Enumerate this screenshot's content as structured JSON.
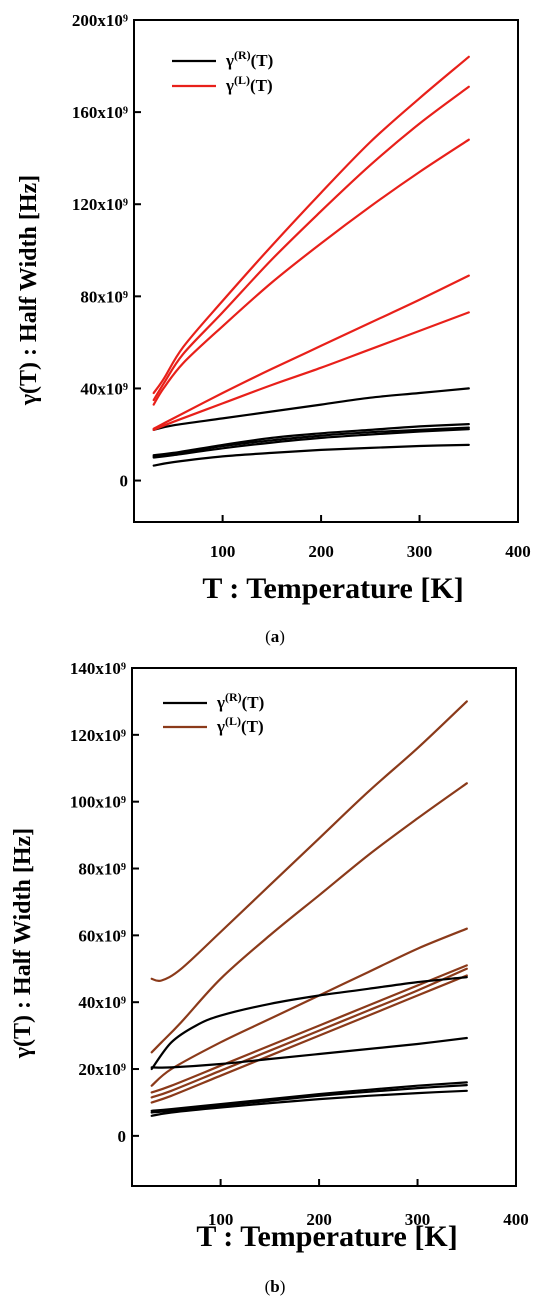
{
  "chart_data": [
    {
      "type": "line",
      "caption": "(a)",
      "xlabel": "T : Temperature [K]",
      "ylabel": "γ(T) :  Half Width [Hz]",
      "xlim": [
        10,
        400
      ],
      "ylim": [
        -18,
        200
      ],
      "xticks": [
        100,
        200,
        300,
        400
      ],
      "yticks": [
        0,
        40,
        80,
        120,
        160,
        200
      ],
      "ytick_labels": [
        "0",
        "40x10⁹",
        "80x10⁹",
        "120x10⁹",
        "160x10⁹",
        "200x10⁹"
      ],
      "legend": {
        "position": "top-left",
        "entries": [
          {
            "label": "γ(R)(T)",
            "base": "γ",
            "sup": "(R)",
            "tail": "(T)",
            "color": "#000000"
          },
          {
            "label": "γ(L)(T)",
            "base": "γ",
            "sup": "(L)",
            "tail": "(T)",
            "color": "#e8201a"
          }
        ]
      },
      "series": [
        {
          "group": "R",
          "color": "#000000",
          "x": [
            30,
            50,
            100,
            150,
            200,
            250,
            300,
            350
          ],
          "values": [
            22,
            24,
            27,
            30,
            33,
            36,
            38,
            40
          ]
        },
        {
          "group": "R",
          "color": "#000000",
          "x": [
            30,
            50,
            100,
            150,
            200,
            250,
            300,
            350
          ],
          "values": [
            11,
            12,
            15.5,
            18.5,
            20.5,
            22,
            23.5,
            24.5
          ]
        },
        {
          "group": "R",
          "color": "#000000",
          "x": [
            30,
            50,
            100,
            150,
            200,
            250,
            300,
            350
          ],
          "values": [
            10.5,
            11.5,
            15,
            17.5,
            19.5,
            21,
            22,
            23
          ]
        },
        {
          "group": "R",
          "color": "#000000",
          "x": [
            30,
            50,
            100,
            150,
            200,
            250,
            300,
            350
          ],
          "values": [
            10,
            11,
            14,
            16.5,
            18.5,
            20,
            21.3,
            22.3
          ]
        },
        {
          "group": "R",
          "color": "#000000",
          "x": [
            30,
            50,
            100,
            150,
            200,
            250,
            300,
            350
          ],
          "values": [
            6.5,
            8,
            10.5,
            12,
            13.3,
            14.2,
            15,
            15.5
          ]
        },
        {
          "group": "L",
          "color": "#e8201a",
          "x": [
            30,
            40,
            60,
            100,
            150,
            200,
            250,
            300,
            350
          ],
          "values": [
            38,
            44,
            58,
            78,
            102,
            125,
            147,
            166,
            184
          ]
        },
        {
          "group": "L",
          "color": "#e8201a",
          "x": [
            30,
            40,
            60,
            100,
            150,
            200,
            250,
            300,
            350
          ],
          "values": [
            35,
            42,
            55,
            73,
            96,
            117,
            137,
            155,
            171
          ]
        },
        {
          "group": "L",
          "color": "#e8201a",
          "x": [
            30,
            40,
            60,
            100,
            150,
            200,
            250,
            300,
            350
          ],
          "values": [
            33,
            40,
            51,
            67,
            86,
            103,
            119,
            134,
            148
          ]
        },
        {
          "group": "L",
          "color": "#e8201a",
          "x": [
            30,
            50,
            100,
            150,
            200,
            250,
            300,
            350
          ],
          "values": [
            22.5,
            27,
            38,
            48.5,
            58.5,
            68.5,
            78.5,
            89
          ]
        },
        {
          "group": "L",
          "color": "#e8201a",
          "x": [
            30,
            50,
            100,
            150,
            200,
            250,
            300,
            350
          ],
          "values": [
            22,
            25.5,
            33.5,
            41.5,
            49,
            57,
            65,
            73
          ]
        }
      ]
    },
    {
      "type": "line",
      "caption": "(b)",
      "xlabel": "T : Temperature [K]",
      "ylabel": "γ(T) :  Half Width [Hz]",
      "xlim": [
        10,
        400
      ],
      "ylim": [
        -15,
        140
      ],
      "xticks": [
        100,
        200,
        300,
        400
      ],
      "yticks": [
        0,
        20,
        40,
        60,
        80,
        100,
        120,
        140
      ],
      "ytick_labels": [
        "0",
        "20x10⁹",
        "40x10⁹",
        "60x10⁹",
        "80x10⁹",
        "100x10⁹",
        "120x10⁹",
        "140x10⁹"
      ],
      "legend": {
        "position": "top-left",
        "entries": [
          {
            "label": "γ(R)(T)",
            "base": "γ",
            "sup": "(R)",
            "tail": "(T)",
            "color": "#000000"
          },
          {
            "label": "γ(L)(T)",
            "base": "γ",
            "sup": "(L)",
            "tail": "(T)",
            "color": "#8b3a1a"
          }
        ]
      },
      "series": [
        {
          "group": "L",
          "color": "#8b3a1a",
          "x": [
            30,
            40,
            60,
            100,
            150,
            200,
            250,
            300,
            350
          ],
          "values": [
            47,
            46.5,
            50,
            61,
            75,
            89,
            103,
            116,
            130
          ]
        },
        {
          "group": "L",
          "color": "#8b3a1a",
          "x": [
            30,
            40,
            60,
            100,
            150,
            200,
            250,
            300,
            350
          ],
          "values": [
            25,
            28,
            34,
            47,
            60,
            72,
            84,
            95,
            105.5
          ]
        },
        {
          "group": "L",
          "color": "#8b3a1a",
          "x": [
            30,
            50,
            100,
            150,
            200,
            250,
            300,
            350
          ],
          "values": [
            15,
            20,
            28,
            35,
            42,
            49,
            56,
            62
          ]
        },
        {
          "group": "L",
          "color": "#8b3a1a",
          "x": [
            30,
            50,
            100,
            150,
            200,
            250,
            300,
            350
          ],
          "values": [
            13,
            15,
            21,
            27,
            33,
            39,
            45,
            51
          ]
        },
        {
          "group": "L",
          "color": "#8b3a1a",
          "x": [
            30,
            50,
            100,
            150,
            200,
            250,
            300,
            350
          ],
          "values": [
            11.5,
            13.5,
            19.5,
            25.5,
            31.5,
            37.5,
            43.5,
            50
          ]
        },
        {
          "group": "L",
          "color": "#8b3a1a",
          "x": [
            30,
            50,
            100,
            150,
            200,
            250,
            300,
            350
          ],
          "values": [
            10,
            12,
            18,
            24,
            30,
            36,
            42,
            48
          ]
        },
        {
          "group": "R",
          "color": "#000000",
          "x": [
            30,
            50,
            75,
            100,
            150,
            200,
            250,
            300,
            350
          ],
          "values": [
            20,
            28,
            33,
            36,
            39.5,
            42,
            44,
            46,
            47.5
          ]
        },
        {
          "group": "R",
          "color": "#000000",
          "x": [
            30,
            50,
            100,
            150,
            200,
            250,
            300,
            350
          ],
          "values": [
            20.5,
            20.5,
            21.5,
            23,
            24.5,
            26,
            27.5,
            29.3
          ]
        },
        {
          "group": "R",
          "color": "#000000",
          "x": [
            30,
            50,
            100,
            150,
            200,
            250,
            300,
            350
          ],
          "values": [
            7.5,
            8,
            9.5,
            11,
            12.5,
            13.8,
            15,
            16
          ]
        },
        {
          "group": "R",
          "color": "#000000",
          "x": [
            30,
            50,
            100,
            150,
            200,
            250,
            300,
            350
          ],
          "values": [
            7,
            7.5,
            9,
            10.5,
            12,
            13.2,
            14.3,
            15.2
          ]
        },
        {
          "group": "R",
          "color": "#000000",
          "x": [
            30,
            50,
            100,
            150,
            200,
            250,
            300,
            350
          ],
          "values": [
            6,
            7,
            8.5,
            9.8,
            11,
            12,
            12.8,
            13.5
          ]
        }
      ]
    }
  ]
}
